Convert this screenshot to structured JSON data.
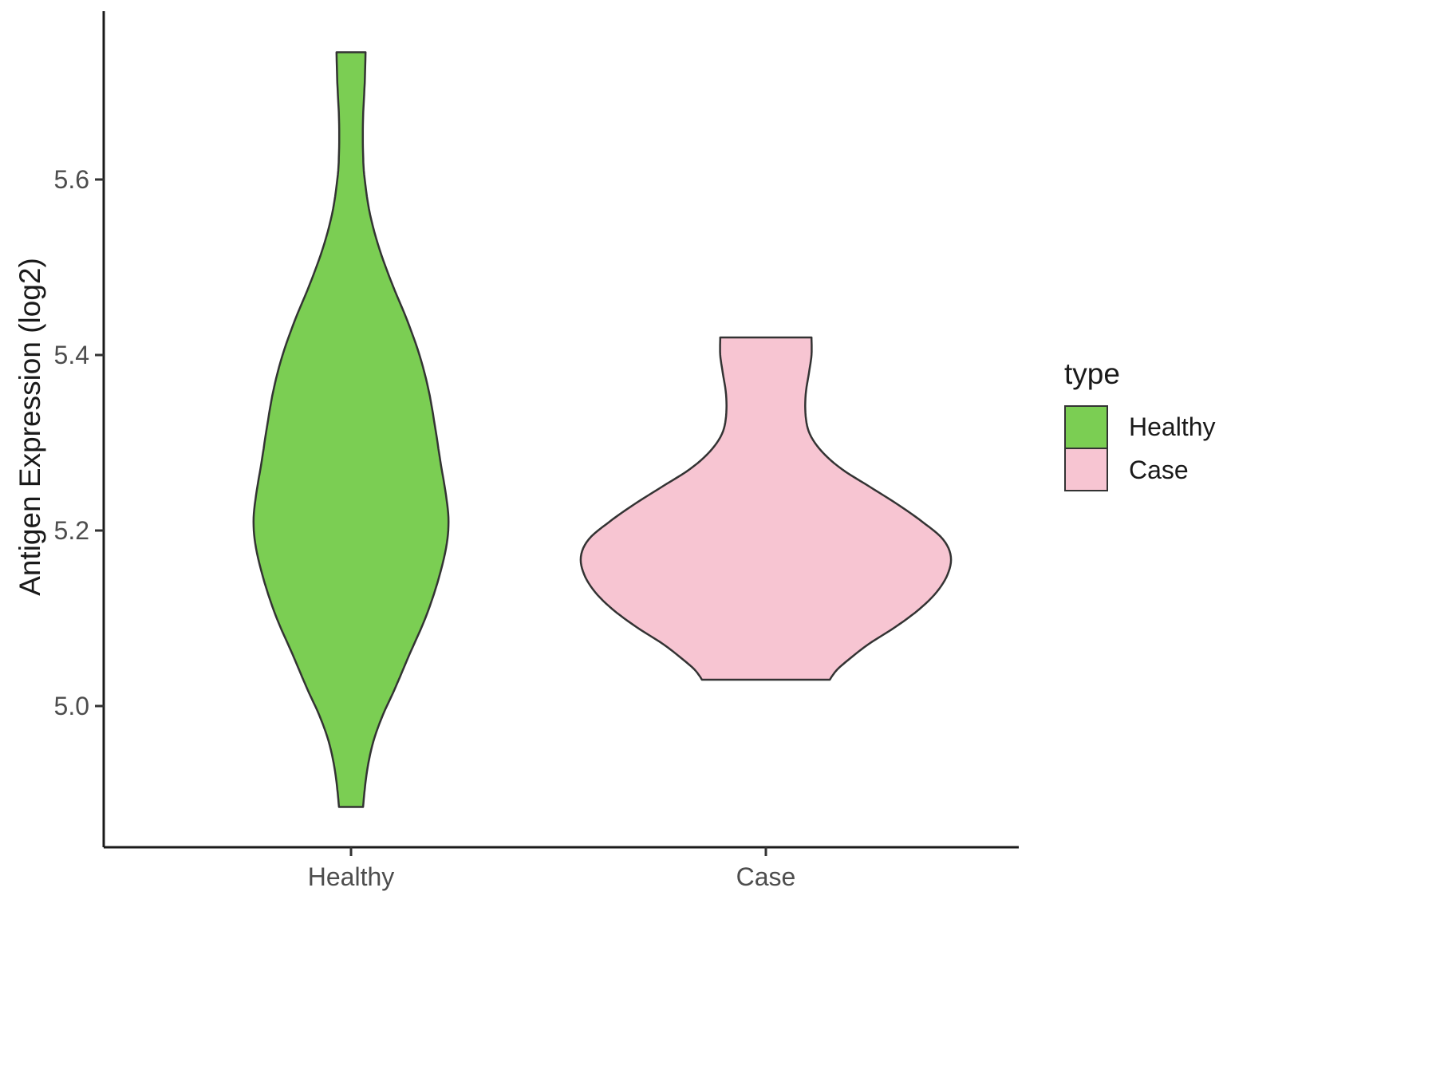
{
  "chart_data": {
    "type": "violin",
    "title": "",
    "xlabel": "",
    "ylabel": "Antigen Expression (log2)",
    "categories": [
      "Healthy",
      "Case"
    ],
    "y_ticks": [
      "5.0",
      "5.2",
      "5.4",
      "5.6"
    ],
    "y_tick_values": [
      5.0,
      5.2,
      5.4,
      5.6
    ],
    "ylim": [
      4.85,
      5.79
    ],
    "grid": "off",
    "legend": {
      "title": "type",
      "position": "right",
      "entries": [
        {
          "label": "Healthy",
          "color": "#7bce53"
        },
        {
          "label": "Case",
          "color": "#f7c5d2"
        }
      ]
    },
    "series": [
      {
        "name": "Healthy",
        "color": "#7bce53",
        "outline": "#333333",
        "range": [
          4.885,
          5.745
        ],
        "peak_value": 5.21,
        "profile": [
          [
            5.745,
            0.035
          ],
          [
            5.71,
            0.033
          ],
          [
            5.67,
            0.029
          ],
          [
            5.63,
            0.029
          ],
          [
            5.6,
            0.033
          ],
          [
            5.56,
            0.046
          ],
          [
            5.52,
            0.069
          ],
          [
            5.48,
            0.1
          ],
          [
            5.44,
            0.135
          ],
          [
            5.4,
            0.165
          ],
          [
            5.36,
            0.187
          ],
          [
            5.32,
            0.202
          ],
          [
            5.28,
            0.215
          ],
          [
            5.24,
            0.229
          ],
          [
            5.21,
            0.235
          ],
          [
            5.18,
            0.229
          ],
          [
            5.14,
            0.208
          ],
          [
            5.1,
            0.179
          ],
          [
            5.06,
            0.142
          ],
          [
            5.02,
            0.106
          ],
          [
            4.99,
            0.077
          ],
          [
            4.96,
            0.054
          ],
          [
            4.93,
            0.04
          ],
          [
            4.905,
            0.033
          ],
          [
            4.885,
            0.029
          ]
        ]
      },
      {
        "name": "Case",
        "color": "#f7c5d2",
        "outline": "#333333",
        "range": [
          5.03,
          5.42
        ],
        "peak_value": 5.17,
        "profile": [
          [
            5.42,
            0.11
          ],
          [
            5.4,
            0.11
          ],
          [
            5.38,
            0.104
          ],
          [
            5.355,
            0.096
          ],
          [
            5.33,
            0.096
          ],
          [
            5.31,
            0.106
          ],
          [
            5.29,
            0.135
          ],
          [
            5.27,
            0.183
          ],
          [
            5.25,
            0.25
          ],
          [
            5.23,
            0.317
          ],
          [
            5.21,
            0.377
          ],
          [
            5.19,
            0.427
          ],
          [
            5.17,
            0.446
          ],
          [
            5.15,
            0.438
          ],
          [
            5.13,
            0.412
          ],
          [
            5.11,
            0.369
          ],
          [
            5.09,
            0.312
          ],
          [
            5.07,
            0.246
          ],
          [
            5.05,
            0.192
          ],
          [
            5.04,
            0.169
          ],
          [
            5.03,
            0.154
          ]
        ]
      }
    ]
  },
  "colors": {
    "axis_line": "#1a1a1a",
    "tick_mark": "#333333",
    "tick_label": "#4d4d4d",
    "text": "#1a1a1a",
    "background": "#ffffff"
  }
}
